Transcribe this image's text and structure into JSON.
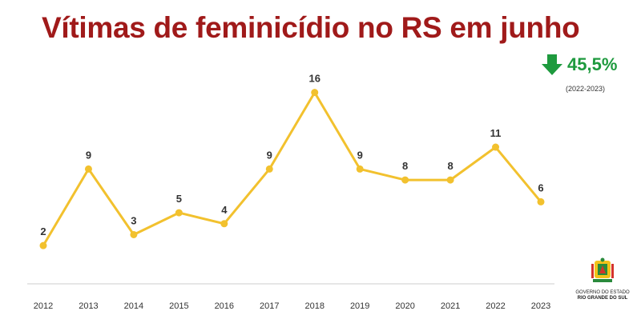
{
  "chart_data": {
    "type": "line",
    "title": "Vítimas de feminicídio no RS em junho",
    "categories": [
      "2012",
      "2013",
      "2014",
      "2015",
      "2016",
      "2017",
      "2018",
      "2019",
      "2020",
      "2021",
      "2022",
      "2023"
    ],
    "series": [
      {
        "values": [
          2,
          9,
          3,
          5,
          4,
          9,
          16,
          9,
          8,
          8,
          11,
          6
        ]
      }
    ],
    "ylim": [
      -1.5,
      17
    ],
    "grid": false,
    "line_color": "#f2c12e",
    "axis_color": "#cccccc"
  },
  "change": {
    "direction": "down",
    "value": "45,5%",
    "period": "(2022-2023)",
    "color": "#1e9a3e",
    "icon": "arrow-down-icon"
  },
  "logo": {
    "line1": "GOVERNO DO ESTADO",
    "line2": "RIO GRANDE DO SUL",
    "icon": "state-coat-of-arms-icon"
  }
}
